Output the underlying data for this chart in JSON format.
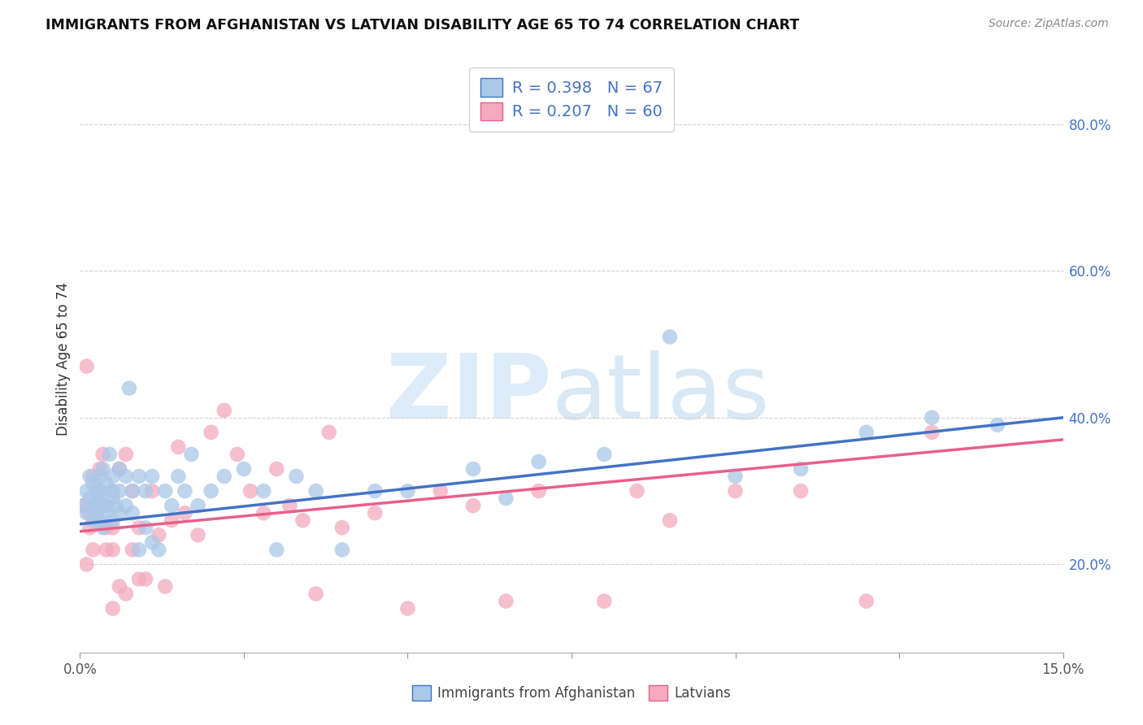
{
  "title": "IMMIGRANTS FROM AFGHANISTAN VS LATVIAN DISABILITY AGE 65 TO 74 CORRELATION CHART",
  "source": "Source: ZipAtlas.com",
  "ylabel_label": "Disability Age 65 to 74",
  "ylabel_ticks": [
    "20.0%",
    "40.0%",
    "60.0%",
    "80.0%"
  ],
  "ylabel_tick_vals": [
    0.2,
    0.4,
    0.6,
    0.8
  ],
  "xtick_vals": [
    0.0,
    0.025,
    0.05,
    0.075,
    0.1,
    0.125,
    0.15
  ],
  "xtick_labels": [
    "0.0%",
    "",
    "",
    "",
    "",
    "",
    "15.0%"
  ],
  "xmin": 0.0,
  "xmax": 0.15,
  "ymin": 0.08,
  "ymax": 0.88,
  "color_afghanistan": "#aac8e8",
  "color_latvians": "#f4aac0",
  "color_line_afghanistan": "#4472c4",
  "color_line_latvians": "#e8608a",
  "watermark_zip": "ZIP",
  "watermark_atlas": "atlas",
  "afghanistan_R": 0.398,
  "afghanistan_N": 67,
  "latvians_R": 0.207,
  "latvians_N": 60,
  "afghanistan_x": [
    0.0005,
    0.001,
    0.001,
    0.0015,
    0.0015,
    0.002,
    0.002,
    0.002,
    0.0025,
    0.0025,
    0.003,
    0.003,
    0.003,
    0.003,
    0.003,
    0.0035,
    0.0035,
    0.004,
    0.004,
    0.004,
    0.0045,
    0.005,
    0.005,
    0.005,
    0.005,
    0.0055,
    0.006,
    0.006,
    0.006,
    0.007,
    0.007,
    0.0075,
    0.008,
    0.008,
    0.009,
    0.009,
    0.01,
    0.01,
    0.011,
    0.011,
    0.012,
    0.013,
    0.014,
    0.015,
    0.016,
    0.017,
    0.018,
    0.02,
    0.022,
    0.025,
    0.028,
    0.03,
    0.033,
    0.036,
    0.04,
    0.045,
    0.05,
    0.06,
    0.065,
    0.07,
    0.08,
    0.09,
    0.1,
    0.11,
    0.12,
    0.13,
    0.14
  ],
  "afghanistan_y": [
    0.28,
    0.27,
    0.3,
    0.29,
    0.32,
    0.26,
    0.28,
    0.31,
    0.3,
    0.27,
    0.28,
    0.26,
    0.3,
    0.32,
    0.29,
    0.25,
    0.33,
    0.28,
    0.31,
    0.27,
    0.35,
    0.29,
    0.3,
    0.26,
    0.32,
    0.28,
    0.3,
    0.27,
    0.33,
    0.32,
    0.28,
    0.44,
    0.3,
    0.27,
    0.32,
    0.22,
    0.3,
    0.25,
    0.32,
    0.23,
    0.22,
    0.3,
    0.28,
    0.32,
    0.3,
    0.35,
    0.28,
    0.3,
    0.32,
    0.33,
    0.3,
    0.22,
    0.32,
    0.3,
    0.22,
    0.3,
    0.3,
    0.33,
    0.29,
    0.34,
    0.35,
    0.51,
    0.32,
    0.33,
    0.38,
    0.4,
    0.39
  ],
  "latvians_x": [
    0.0005,
    0.001,
    0.001,
    0.0015,
    0.0015,
    0.002,
    0.002,
    0.002,
    0.0025,
    0.003,
    0.003,
    0.003,
    0.0035,
    0.004,
    0.004,
    0.004,
    0.005,
    0.005,
    0.005,
    0.005,
    0.006,
    0.006,
    0.007,
    0.007,
    0.008,
    0.008,
    0.009,
    0.009,
    0.01,
    0.011,
    0.012,
    0.013,
    0.014,
    0.015,
    0.016,
    0.018,
    0.02,
    0.022,
    0.024,
    0.026,
    0.028,
    0.03,
    0.032,
    0.034,
    0.036,
    0.038,
    0.04,
    0.045,
    0.05,
    0.055,
    0.06,
    0.065,
    0.07,
    0.08,
    0.085,
    0.09,
    0.1,
    0.11,
    0.12,
    0.13
  ],
  "latvians_y": [
    0.28,
    0.47,
    0.2,
    0.27,
    0.25,
    0.32,
    0.28,
    0.22,
    0.29,
    0.33,
    0.26,
    0.3,
    0.35,
    0.28,
    0.22,
    0.25,
    0.3,
    0.25,
    0.14,
    0.22,
    0.33,
    0.17,
    0.35,
    0.16,
    0.3,
    0.22,
    0.25,
    0.18,
    0.18,
    0.3,
    0.24,
    0.17,
    0.26,
    0.36,
    0.27,
    0.24,
    0.38,
    0.41,
    0.35,
    0.3,
    0.27,
    0.33,
    0.28,
    0.26,
    0.16,
    0.38,
    0.25,
    0.27,
    0.14,
    0.3,
    0.28,
    0.15,
    0.3,
    0.15,
    0.3,
    0.26,
    0.3,
    0.3,
    0.15,
    0.38
  ],
  "afg_line_x0": 0.0,
  "afg_line_y0": 0.255,
  "afg_line_x1": 0.15,
  "afg_line_y1": 0.4,
  "lat_line_x0": 0.0,
  "lat_line_y0": 0.245,
  "lat_line_x1": 0.15,
  "lat_line_y1": 0.37
}
